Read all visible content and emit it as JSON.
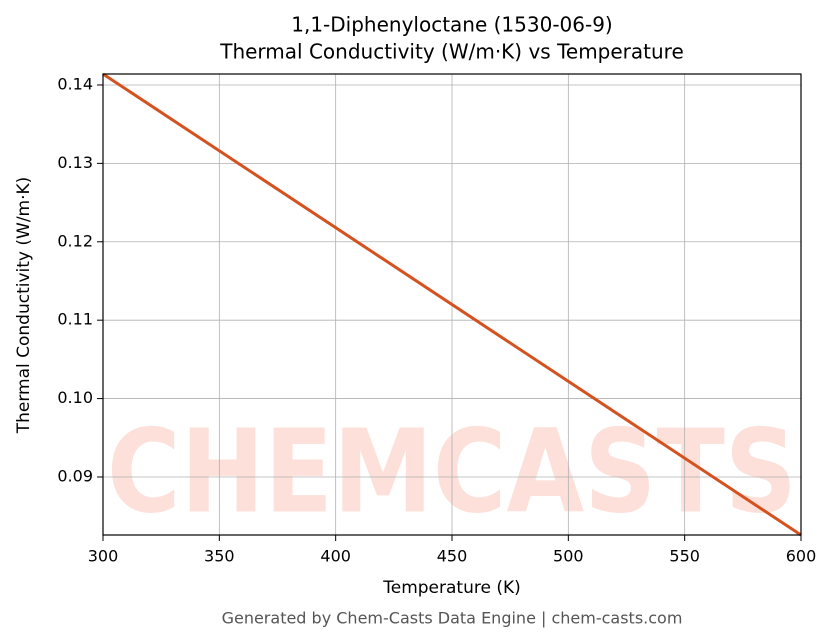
{
  "chart_data": {
    "type": "line",
    "title": "1,1-Diphenyloctane (1530-06-9)",
    "subtitle": "Thermal Conductivity (W/m·K) vs Temperature",
    "xlabel": "Temperature (K)",
    "ylabel": "Thermal Conductivity (W/m·K)",
    "x": [
      300,
      600
    ],
    "series": [
      {
        "name": "Thermal Conductivity",
        "color": "#d4521f",
        "values": [
          0.1414,
          0.0826
        ]
      }
    ],
    "xlim": [
      300,
      600
    ],
    "xticks": [
      300,
      350,
      400,
      450,
      500,
      550,
      600
    ],
    "ylim": [
      0.0826,
      0.1414
    ],
    "yticks": [
      0.09,
      {
        "value": 0.1,
        "label": "0.10"
      },
      0.11,
      0.12,
      0.13,
      0.14
    ],
    "grid": true,
    "watermark": "CHEMCASTS",
    "footer": "Generated by Chem-Casts Data Engine | chem-casts.com"
  }
}
